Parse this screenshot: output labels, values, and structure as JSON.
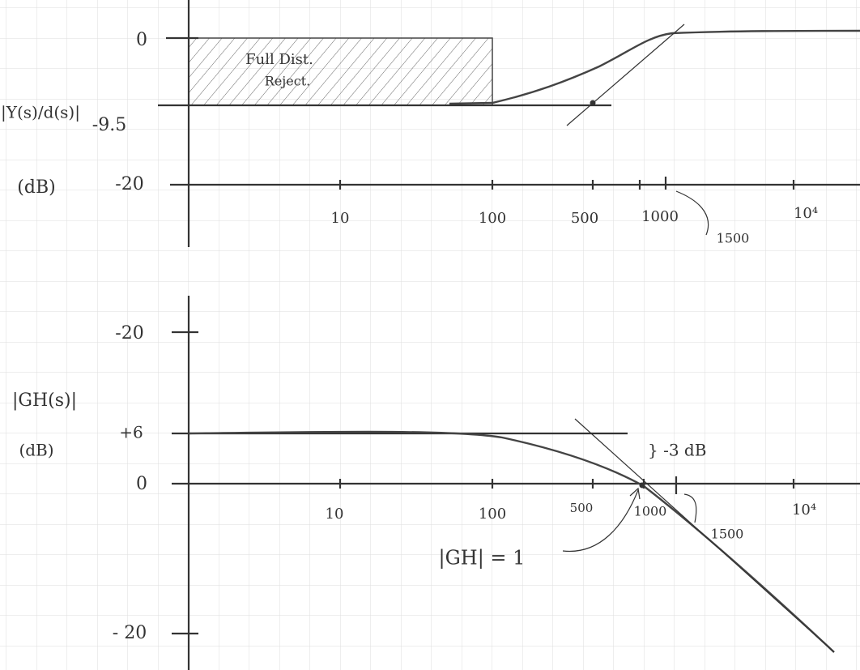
{
  "top_plot": {
    "y_label": "|Y(s)/d(s)|",
    "y_unit": "(dB)",
    "y_ticks": [
      "0",
      "-9.5",
      "-20"
    ],
    "x_ticks": [
      "10",
      "100",
      "500",
      "1000",
      "10⁴"
    ],
    "region_label": [
      "Full Dist.",
      "Reject."
    ],
    "annotation": "1500"
  },
  "bottom_plot": {
    "y_label": "|GH(s)|",
    "y_unit": "(dB)",
    "y_ticks": [
      "-20",
      "+6",
      "0",
      "- 20"
    ],
    "x_ticks": [
      "10",
      "100",
      "500",
      "1000",
      "10⁴"
    ],
    "annotations": [
      "} -3 dB",
      "|GH| = 1",
      "1500"
    ]
  }
}
